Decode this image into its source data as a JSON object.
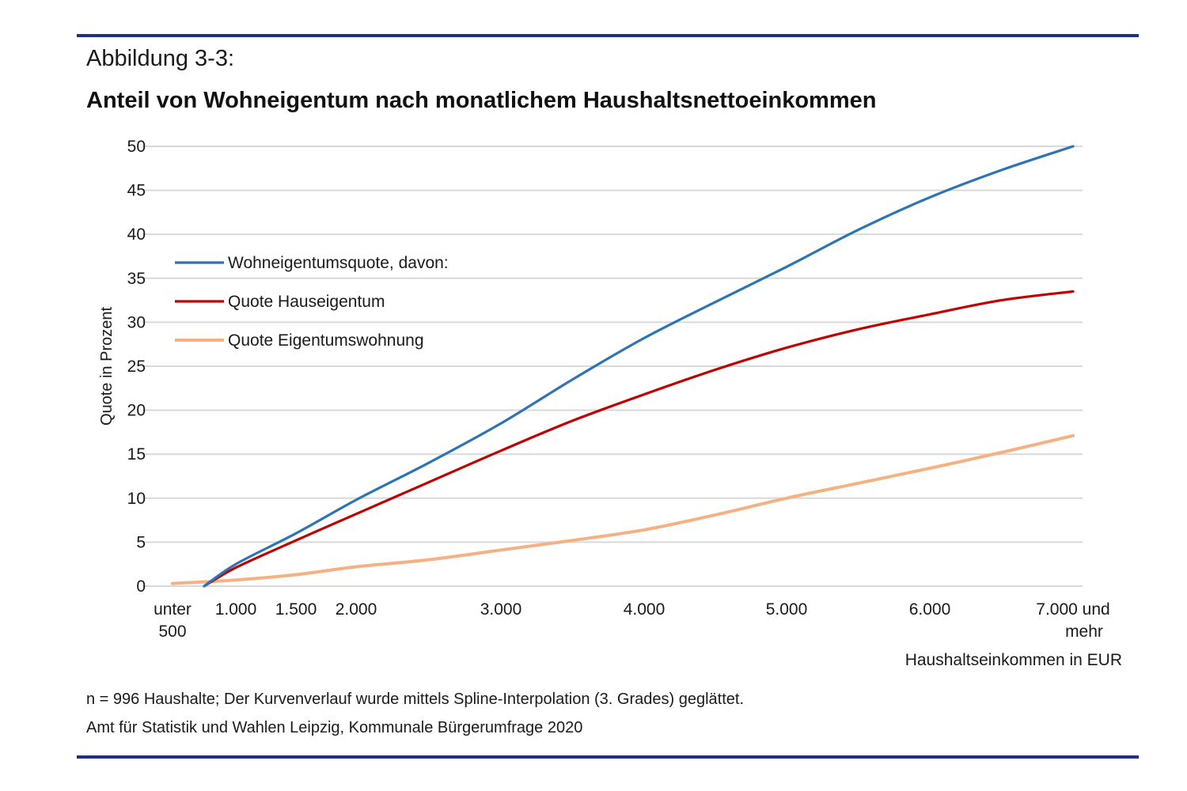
{
  "figure": {
    "label": "Abbildung 3-3:",
    "title": "Anteil von Wohneigentum nach monatlichem Haushaltsnettoeinkommen",
    "note": "n = 996 Haushalte; Der Kurvenverlauf wurde mittels Spline-Interpolation (3. Grades) geglättet.",
    "source": "Amt für Statistik und Wahlen Leipzig, Kommunale Bürgerumfrage 2020",
    "rule_color": "#1d2f8a"
  },
  "chart_data": {
    "type": "line",
    "title": "Anteil von Wohneigentum nach monatlichem Haushaltsnettoeinkommen",
    "xlabel": "Haushaltseinkommen in EUR",
    "ylabel": "Quote in Prozent",
    "ylim": [
      0,
      50
    ],
    "yticks": [
      0,
      5,
      10,
      15,
      20,
      25,
      30,
      35,
      40,
      45,
      50
    ],
    "xticks": [
      {
        "value": 500,
        "line1": "unter",
        "line2": "500"
      },
      {
        "value": 1000,
        "line1": "1.000",
        "line2": ""
      },
      {
        "value": 1500,
        "line1": "1.500",
        "line2": ""
      },
      {
        "value": 2000,
        "line1": "2.000",
        "line2": ""
      },
      {
        "value": 3000,
        "line1": "3.000",
        "line2": ""
      },
      {
        "value": 4000,
        "line1": "4.000",
        "line2": ""
      },
      {
        "value": 5000,
        "line1": "5.000",
        "line2": ""
      },
      {
        "value": 6000,
        "line1": "6.000",
        "line2": ""
      },
      {
        "value": 7000,
        "line1": "7.000 und",
        "line2": "mehr"
      }
    ],
    "grid": true,
    "legend_position": "top-left",
    "series": [
      {
        "name": "Wohneigentumsquote, davon:",
        "color": "#2e74b5",
        "x": [
          750,
          1000,
          1500,
          2000,
          2500,
          3000,
          3500,
          4000,
          4500,
          5000,
          5500,
          6000,
          6500,
          7000
        ],
        "y": [
          0,
          2.5,
          6,
          9.8,
          14,
          18.5,
          23.5,
          28.2,
          32.3,
          36.3,
          40.5,
          44.2,
          47.3,
          50
        ]
      },
      {
        "name": "Quote Hauseigentum",
        "color": "#c00000",
        "x": [
          750,
          1000,
          1500,
          2000,
          2500,
          3000,
          3500,
          4000,
          4500,
          5000,
          5500,
          6000,
          6500,
          7000
        ],
        "y": [
          0,
          2.1,
          5.2,
          8.2,
          11.8,
          15.4,
          18.8,
          21.8,
          24.6,
          27.1,
          29.2,
          30.9,
          32.5,
          33.5
        ]
      },
      {
        "name": "Quote Eigentumswohnung",
        "color": "#f4b183",
        "x": [
          500,
          1000,
          1500,
          2000,
          2500,
          3000,
          3500,
          4000,
          4500,
          5000,
          5500,
          6000,
          6500,
          7000
        ],
        "y": [
          0.3,
          0.7,
          1.3,
          2.2,
          3,
          4.1,
          5.2,
          6.4,
          8.1,
          10,
          11.7,
          13.4,
          15.2,
          17.1
        ]
      }
    ]
  }
}
